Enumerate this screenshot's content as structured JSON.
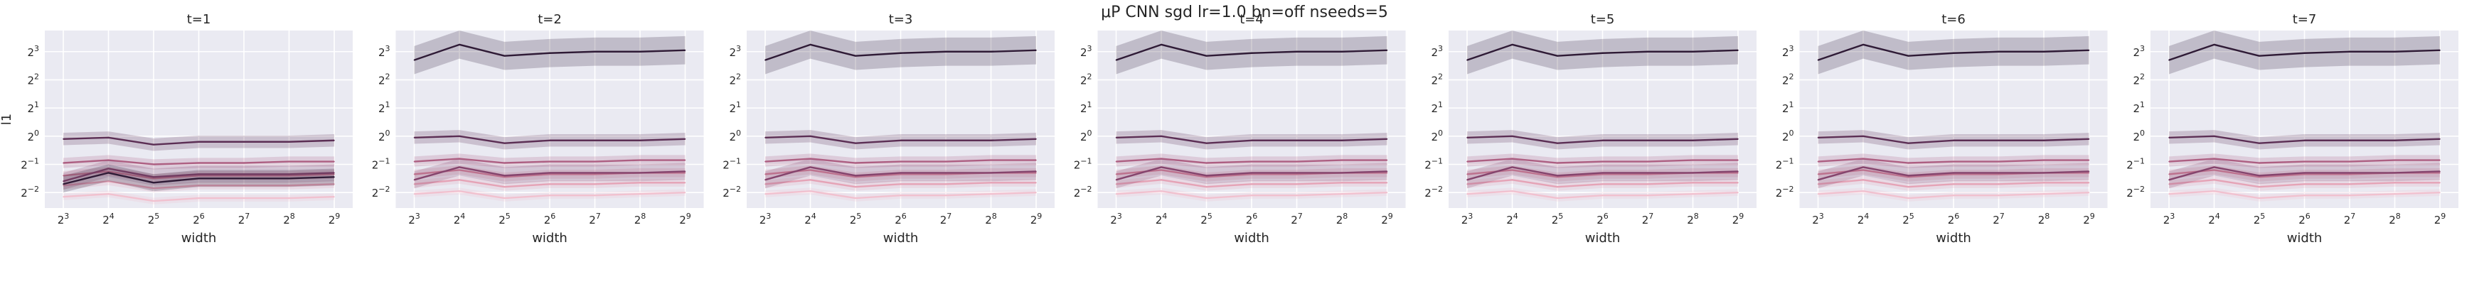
{
  "figure": {
    "suptitle": "μP CNN sgd lr=1.0 bn=off nseeds=5"
  },
  "style": {
    "plot_bg": "#eaeaf2",
    "grid": "#ffffff",
    "palette": [
      "#f1c1cf",
      "#e5a3b6",
      "#cd7f98",
      "#ad5f82",
      "#85446d",
      "#5b2e54",
      "#2f1b36"
    ]
  },
  "chart_data": [
    {
      "type": "line",
      "title": "t=1",
      "xlabel": "width",
      "ylabel": "l1",
      "x_exponents": [
        3,
        4,
        5,
        6,
        7,
        8,
        9
      ],
      "x_tick_labels": [
        "2^3",
        "2^4",
        "2^5",
        "2^6",
        "2^7",
        "2^8",
        "2^9"
      ],
      "y_tick_labels": [
        "2^3",
        "2^2",
        "2^1",
        "2^0",
        "2^-1",
        "2^-2"
      ],
      "y_ticks_log2": [
        3,
        2,
        1,
        0,
        -1,
        -2
      ],
      "ylim_log2": [
        -2.55,
        3.75
      ],
      "log_base": 2,
      "grid": true,
      "legend": "none",
      "series": [
        {
          "values_log2": [
            -2.15,
            -2.05,
            -2.3,
            -2.2,
            -2.2,
            -2.2,
            -2.15
          ],
          "band": 0.12
        },
        {
          "values_log2": [
            -1.75,
            -1.6,
            -1.85,
            -1.75,
            -1.75,
            -1.75,
            -1.7
          ],
          "band": 0.14
        },
        {
          "values_log2": [
            -1.4,
            -1.25,
            -1.5,
            -1.4,
            -1.4,
            -1.4,
            -1.35
          ],
          "band": 0.16
        },
        {
          "values_log2": [
            -0.95,
            -0.85,
            -1.0,
            -0.95,
            -0.95,
            -0.9,
            -0.9
          ],
          "band": 0.18
        },
        {
          "values_log2": [
            -1.6,
            -1.15,
            -1.45,
            -1.35,
            -1.35,
            -1.35,
            -1.3
          ],
          "band": 0.3
        },
        {
          "values_log2": [
            -0.1,
            -0.05,
            -0.3,
            -0.2,
            -0.2,
            -0.2,
            -0.15
          ],
          "band": 0.22
        },
        {
          "values_log2": [
            -1.7,
            -1.3,
            -1.65,
            -1.5,
            -1.5,
            -1.5,
            -1.45
          ],
          "band": 0.3
        }
      ]
    },
    {
      "type": "line",
      "title": "t=2",
      "xlabel": "width",
      "ylabel": "",
      "x_exponents": [
        3,
        4,
        5,
        6,
        7,
        8,
        9
      ],
      "x_tick_labels": [
        "2^3",
        "2^4",
        "2^5",
        "2^6",
        "2^7",
        "2^8",
        "2^9"
      ],
      "y_tick_labels": [
        "2^3",
        "2^2",
        "2^1",
        "2^0",
        "2^-1",
        "2^-2"
      ],
      "y_ticks_log2": [
        3,
        2,
        1,
        0,
        -1,
        -2
      ],
      "ylim_log2": [
        -2.55,
        3.75
      ],
      "log_base": 2,
      "grid": true,
      "legend": "none",
      "series": [
        {
          "values_log2": [
            -2.05,
            -1.95,
            -2.2,
            -2.1,
            -2.1,
            -2.05,
            -2.0
          ],
          "band": 0.12
        },
        {
          "values_log2": [
            -1.7,
            -1.55,
            -1.8,
            -1.7,
            -1.7,
            -1.65,
            -1.65
          ],
          "band": 0.14
        },
        {
          "values_log2": [
            -1.35,
            -1.2,
            -1.45,
            -1.35,
            -1.35,
            -1.3,
            -1.3
          ],
          "band": 0.16
        },
        {
          "values_log2": [
            -0.9,
            -0.8,
            -0.95,
            -0.9,
            -0.9,
            -0.85,
            -0.85
          ],
          "band": 0.18
        },
        {
          "values_log2": [
            -1.55,
            -1.1,
            -1.4,
            -1.3,
            -1.3,
            -1.3,
            -1.25
          ],
          "band": 0.3
        },
        {
          "values_log2": [
            -0.05,
            0.0,
            -0.25,
            -0.15,
            -0.15,
            -0.15,
            -0.1
          ],
          "band": 0.22
        },
        {
          "values_log2": [
            2.7,
            3.25,
            2.85,
            2.95,
            3.0,
            3.0,
            3.05
          ],
          "band": 0.5
        }
      ]
    },
    {
      "type": "line",
      "title": "t=3",
      "xlabel": "width",
      "ylabel": "",
      "x_exponents": [
        3,
        4,
        5,
        6,
        7,
        8,
        9
      ],
      "x_tick_labels": [
        "2^3",
        "2^4",
        "2^5",
        "2^6",
        "2^7",
        "2^8",
        "2^9"
      ],
      "y_tick_labels": [
        "2^3",
        "2^2",
        "2^1",
        "2^0",
        "2^-1",
        "2^-2"
      ],
      "y_ticks_log2": [
        3,
        2,
        1,
        0,
        -1,
        -2
      ],
      "ylim_log2": [
        -2.55,
        3.75
      ],
      "log_base": 2,
      "grid": true,
      "legend": "none",
      "series": [
        {
          "values_log2": [
            -2.05,
            -1.95,
            -2.2,
            -2.1,
            -2.1,
            -2.05,
            -2.0
          ],
          "band": 0.12
        },
        {
          "values_log2": [
            -1.7,
            -1.55,
            -1.8,
            -1.7,
            -1.7,
            -1.65,
            -1.65
          ],
          "band": 0.14
        },
        {
          "values_log2": [
            -1.35,
            -1.2,
            -1.45,
            -1.35,
            -1.35,
            -1.3,
            -1.3
          ],
          "band": 0.16
        },
        {
          "values_log2": [
            -0.9,
            -0.8,
            -0.95,
            -0.9,
            -0.9,
            -0.85,
            -0.85
          ],
          "band": 0.18
        },
        {
          "values_log2": [
            -1.55,
            -1.1,
            -1.4,
            -1.3,
            -1.3,
            -1.3,
            -1.25
          ],
          "band": 0.3
        },
        {
          "values_log2": [
            -0.05,
            0.0,
            -0.25,
            -0.15,
            -0.15,
            -0.15,
            -0.1
          ],
          "band": 0.22
        },
        {
          "values_log2": [
            2.7,
            3.25,
            2.85,
            2.95,
            3.0,
            3.0,
            3.05
          ],
          "band": 0.5
        }
      ]
    },
    {
      "type": "line",
      "title": "t=4",
      "xlabel": "width",
      "ylabel": "",
      "x_exponents": [
        3,
        4,
        5,
        6,
        7,
        8,
        9
      ],
      "x_tick_labels": [
        "2^3",
        "2^4",
        "2^5",
        "2^6",
        "2^7",
        "2^8",
        "2^9"
      ],
      "y_tick_labels": [
        "2^3",
        "2^2",
        "2^1",
        "2^0",
        "2^-1",
        "2^-2"
      ],
      "y_ticks_log2": [
        3,
        2,
        1,
        0,
        -1,
        -2
      ],
      "ylim_log2": [
        -2.55,
        3.75
      ],
      "log_base": 2,
      "grid": true,
      "legend": "none",
      "series": [
        {
          "values_log2": [
            -2.05,
            -1.95,
            -2.2,
            -2.1,
            -2.1,
            -2.05,
            -2.0
          ],
          "band": 0.12
        },
        {
          "values_log2": [
            -1.7,
            -1.55,
            -1.8,
            -1.7,
            -1.7,
            -1.65,
            -1.65
          ],
          "band": 0.14
        },
        {
          "values_log2": [
            -1.35,
            -1.2,
            -1.45,
            -1.35,
            -1.35,
            -1.3,
            -1.3
          ],
          "band": 0.16
        },
        {
          "values_log2": [
            -0.9,
            -0.8,
            -0.95,
            -0.9,
            -0.9,
            -0.85,
            -0.85
          ],
          "band": 0.18
        },
        {
          "values_log2": [
            -1.55,
            -1.1,
            -1.4,
            -1.3,
            -1.3,
            -1.3,
            -1.25
          ],
          "band": 0.3
        },
        {
          "values_log2": [
            -0.05,
            0.0,
            -0.25,
            -0.15,
            -0.15,
            -0.15,
            -0.1
          ],
          "band": 0.22
        },
        {
          "values_log2": [
            2.7,
            3.25,
            2.85,
            2.95,
            3.0,
            3.0,
            3.05
          ],
          "band": 0.5
        }
      ]
    },
    {
      "type": "line",
      "title": "t=5",
      "xlabel": "width",
      "ylabel": "",
      "x_exponents": [
        3,
        4,
        5,
        6,
        7,
        8,
        9
      ],
      "x_tick_labels": [
        "2^3",
        "2^4",
        "2^5",
        "2^6",
        "2^7",
        "2^8",
        "2^9"
      ],
      "y_tick_labels": [
        "2^3",
        "2^2",
        "2^1",
        "2^0",
        "2^-1",
        "2^-2"
      ],
      "y_ticks_log2": [
        3,
        2,
        1,
        0,
        -1,
        -2
      ],
      "ylim_log2": [
        -2.55,
        3.75
      ],
      "log_base": 2,
      "grid": true,
      "legend": "none",
      "series": [
        {
          "values_log2": [
            -2.05,
            -1.95,
            -2.2,
            -2.1,
            -2.1,
            -2.05,
            -2.0
          ],
          "band": 0.12
        },
        {
          "values_log2": [
            -1.7,
            -1.55,
            -1.8,
            -1.7,
            -1.7,
            -1.65,
            -1.65
          ],
          "band": 0.14
        },
        {
          "values_log2": [
            -1.35,
            -1.2,
            -1.45,
            -1.35,
            -1.35,
            -1.3,
            -1.3
          ],
          "band": 0.16
        },
        {
          "values_log2": [
            -0.9,
            -0.8,
            -0.95,
            -0.9,
            -0.9,
            -0.85,
            -0.85
          ],
          "band": 0.18
        },
        {
          "values_log2": [
            -1.55,
            -1.1,
            -1.4,
            -1.3,
            -1.3,
            -1.3,
            -1.25
          ],
          "band": 0.3
        },
        {
          "values_log2": [
            -0.05,
            0.0,
            -0.25,
            -0.15,
            -0.15,
            -0.15,
            -0.1
          ],
          "band": 0.22
        },
        {
          "values_log2": [
            2.7,
            3.25,
            2.85,
            2.95,
            3.0,
            3.0,
            3.05
          ],
          "band": 0.5
        }
      ]
    },
    {
      "type": "line",
      "title": "t=6",
      "xlabel": "width",
      "ylabel": "",
      "x_exponents": [
        3,
        4,
        5,
        6,
        7,
        8,
        9
      ],
      "x_tick_labels": [
        "2^3",
        "2^4",
        "2^5",
        "2^6",
        "2^7",
        "2^8",
        "2^9"
      ],
      "y_tick_labels": [
        "2^3",
        "2^2",
        "2^1",
        "2^0",
        "2^-1",
        "2^-2"
      ],
      "y_ticks_log2": [
        3,
        2,
        1,
        0,
        -1,
        -2
      ],
      "ylim_log2": [
        -2.55,
        3.75
      ],
      "log_base": 2,
      "grid": true,
      "legend": "none",
      "series": [
        {
          "values_log2": [
            -2.05,
            -1.95,
            -2.2,
            -2.1,
            -2.1,
            -2.05,
            -2.0
          ],
          "band": 0.12
        },
        {
          "values_log2": [
            -1.7,
            -1.55,
            -1.8,
            -1.7,
            -1.7,
            -1.65,
            -1.65
          ],
          "band": 0.14
        },
        {
          "values_log2": [
            -1.35,
            -1.2,
            -1.45,
            -1.35,
            -1.35,
            -1.3,
            -1.3
          ],
          "band": 0.16
        },
        {
          "values_log2": [
            -0.9,
            -0.8,
            -0.95,
            -0.9,
            -0.9,
            -0.85,
            -0.85
          ],
          "band": 0.18
        },
        {
          "values_log2": [
            -1.55,
            -1.1,
            -1.4,
            -1.3,
            -1.3,
            -1.3,
            -1.25
          ],
          "band": 0.3
        },
        {
          "values_log2": [
            -0.05,
            0.0,
            -0.25,
            -0.15,
            -0.15,
            -0.15,
            -0.1
          ],
          "band": 0.22
        },
        {
          "values_log2": [
            2.7,
            3.25,
            2.85,
            2.95,
            3.0,
            3.0,
            3.05
          ],
          "band": 0.5
        }
      ]
    },
    {
      "type": "line",
      "title": "t=7",
      "xlabel": "width",
      "ylabel": "",
      "x_exponents": [
        3,
        4,
        5,
        6,
        7,
        8,
        9
      ],
      "x_tick_labels": [
        "2^3",
        "2^4",
        "2^5",
        "2^6",
        "2^7",
        "2^8",
        "2^9"
      ],
      "y_tick_labels": [
        "2^3",
        "2^2",
        "2^1",
        "2^0",
        "2^-1",
        "2^-2"
      ],
      "y_ticks_log2": [
        3,
        2,
        1,
        0,
        -1,
        -2
      ],
      "ylim_log2": [
        -2.55,
        3.75
      ],
      "log_base": 2,
      "grid": true,
      "legend": "none",
      "series": [
        {
          "values_log2": [
            -2.05,
            -1.95,
            -2.2,
            -2.1,
            -2.1,
            -2.05,
            -2.0
          ],
          "band": 0.12
        },
        {
          "values_log2": [
            -1.7,
            -1.55,
            -1.8,
            -1.7,
            -1.7,
            -1.65,
            -1.65
          ],
          "band": 0.14
        },
        {
          "values_log2": [
            -1.35,
            -1.2,
            -1.45,
            -1.35,
            -1.35,
            -1.3,
            -1.3
          ],
          "band": 0.16
        },
        {
          "values_log2": [
            -0.9,
            -0.8,
            -0.95,
            -0.9,
            -0.9,
            -0.85,
            -0.85
          ],
          "band": 0.18
        },
        {
          "values_log2": [
            -1.55,
            -1.1,
            -1.4,
            -1.3,
            -1.3,
            -1.3,
            -1.25
          ],
          "band": 0.3
        },
        {
          "values_log2": [
            -0.05,
            0.0,
            -0.25,
            -0.15,
            -0.15,
            -0.15,
            -0.1
          ],
          "band": 0.22
        },
        {
          "values_log2": [
            2.7,
            3.25,
            2.85,
            2.95,
            3.0,
            3.0,
            3.05
          ],
          "band": 0.5
        }
      ]
    }
  ]
}
